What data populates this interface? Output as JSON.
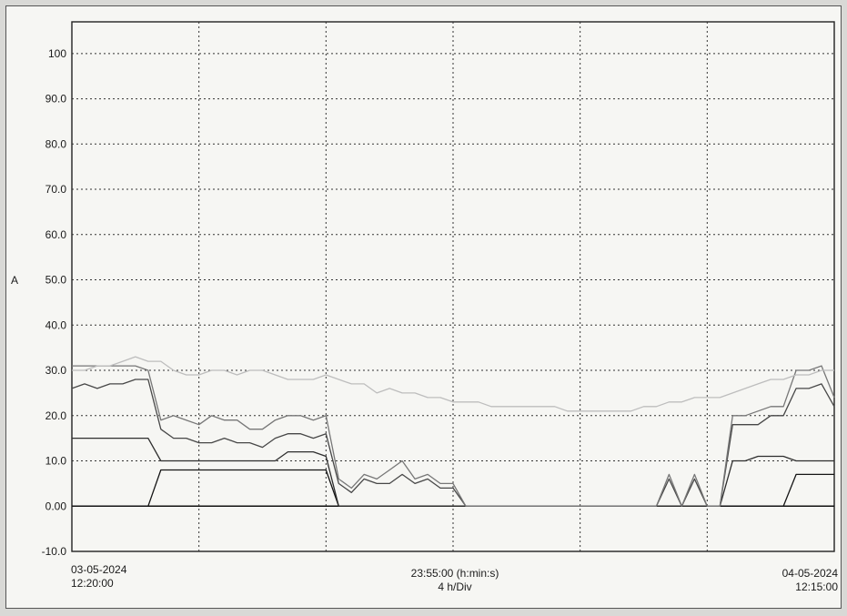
{
  "chart_data": {
    "type": "line",
    "title": "",
    "ylabel": "A",
    "xlabel": "",
    "ylim": [
      -10,
      107
    ],
    "yticks": [
      "100",
      "90.0",
      "80.0",
      "70.0",
      "60.0",
      "50.0",
      "40.0",
      "30.0",
      "20.0",
      "10.0",
      "0.00",
      "-10.0"
    ],
    "ytick_values": [
      100,
      90,
      80,
      70,
      60,
      50,
      40,
      30,
      20,
      10,
      0,
      -10
    ],
    "x_divisions": 6,
    "grid": true,
    "start": {
      "date": "03-05-2024",
      "time": "12:20:00"
    },
    "duration": "23:55:00 (h:min:s)",
    "scale": "4 h/Div",
    "end": {
      "date": "04-05-2024",
      "time": "12:15:00"
    },
    "x": [
      0,
      0.1,
      0.2,
      0.3,
      0.4,
      0.5,
      0.6,
      0.7,
      0.8,
      0.9,
      1.0,
      1.1,
      1.2,
      1.3,
      1.4,
      1.5,
      1.6,
      1.7,
      1.8,
      1.9,
      2.0,
      2.1,
      2.2,
      2.3,
      2.4,
      2.5,
      2.6,
      2.7,
      2.8,
      2.9,
      3.0,
      3.1,
      3.2,
      3.3,
      3.4,
      3.5,
      3.6,
      3.7,
      3.8,
      3.9,
      4.0,
      4.1,
      4.2,
      4.3,
      4.4,
      4.5,
      4.6,
      4.7,
      4.8,
      4.9,
      5.0,
      5.1,
      5.2,
      5.3,
      5.4,
      5.5,
      5.6,
      5.7,
      5.8,
      5.9,
      6.0
    ],
    "series": [
      {
        "values": [
          0,
          0,
          0,
          0,
          0,
          0,
          0,
          8,
          8,
          8,
          8,
          8,
          8,
          8,
          8,
          8,
          8,
          8,
          8,
          8,
          8,
          0,
          0,
          0,
          0,
          0,
          0,
          0,
          0,
          0,
          0,
          0,
          0,
          0,
          0,
          0,
          0,
          0,
          0,
          0,
          0,
          0,
          0,
          0,
          0,
          0,
          0,
          0,
          0,
          0,
          0,
          0,
          0,
          0,
          0,
          0,
          0,
          7,
          7,
          7,
          7
        ],
        "color": "#151515"
      },
      {
        "values": [
          15,
          15,
          15,
          15,
          15,
          15,
          15,
          10,
          10,
          10,
          10,
          10,
          10,
          10,
          10,
          10,
          10,
          12,
          12,
          12,
          11,
          0,
          0,
          0,
          0,
          0,
          0,
          0,
          0,
          0,
          0,
          0,
          0,
          0,
          0,
          0,
          0,
          0,
          0,
          0,
          0,
          0,
          0,
          0,
          0,
          0,
          0,
          0,
          0,
          0,
          0,
          0,
          10,
          10,
          11,
          11,
          11,
          10,
          10,
          10,
          10
        ],
        "color": "#2e2e2e"
      },
      {
        "values": [
          26,
          27,
          26,
          27,
          27,
          28,
          28,
          17,
          15,
          15,
          14,
          14,
          15,
          14,
          14,
          13,
          15,
          16,
          16,
          15,
          16,
          5,
          3,
          6,
          5,
          5,
          7,
          5,
          6,
          4,
          4,
          0,
          0,
          0,
          0,
          0,
          0,
          0,
          0,
          0,
          0,
          0,
          0,
          0,
          0,
          0,
          0,
          6,
          0,
          6,
          0,
          0,
          18,
          18,
          18,
          20,
          20,
          26,
          26,
          27,
          22
        ],
        "color": "#474747"
      },
      {
        "values": [
          31,
          31,
          31,
          31,
          31,
          31,
          30,
          19,
          20,
          19,
          18,
          20,
          19,
          19,
          17,
          17,
          19,
          20,
          20,
          19,
          20,
          6,
          4,
          7,
          6,
          8,
          10,
          6,
          7,
          5,
          5,
          0,
          0,
          0,
          0,
          0,
          0,
          0,
          0,
          0,
          0,
          0,
          0,
          0,
          0,
          0,
          0,
          7,
          0,
          7,
          0,
          0,
          20,
          20,
          21,
          22,
          22,
          30,
          30,
          31,
          24
        ],
        "color": "#777777"
      },
      {
        "values": [
          30,
          30,
          31,
          31,
          32,
          33,
          32,
          32,
          30,
          29,
          29,
          30,
          30,
          29,
          30,
          30,
          29,
          28,
          28,
          28,
          29,
          28,
          27,
          27,
          25,
          26,
          25,
          25,
          24,
          24,
          23,
          23,
          23,
          22,
          22,
          22,
          22,
          22,
          22,
          21,
          21,
          21,
          21,
          21,
          21,
          22,
          22,
          23,
          23,
          24,
          24,
          24,
          25,
          26,
          27,
          28,
          28,
          29,
          29,
          30,
          30
        ],
        "color": "#bdbdbd"
      }
    ]
  }
}
